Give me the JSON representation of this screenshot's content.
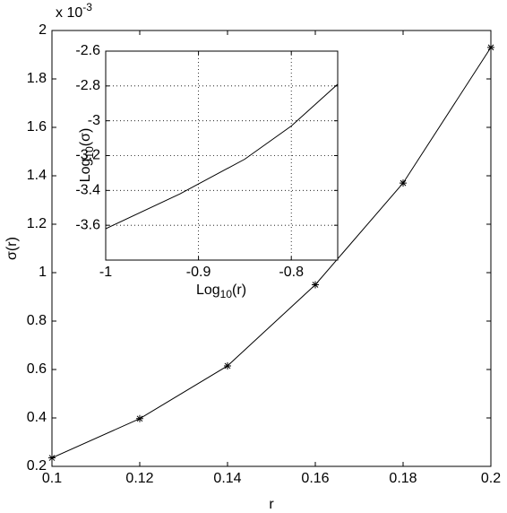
{
  "chart_data": [
    {
      "type": "line",
      "xlabel": "r",
      "ylabel": "σ(r)",
      "y_multiplier": {
        "base": "x 10",
        "exponent": "-3"
      },
      "x": [
        0.1,
        0.12,
        0.14,
        0.16,
        0.18,
        0.2
      ],
      "series": [
        {
          "color": "#000000",
          "marker": "*",
          "values": [
            0.235,
            0.397,
            0.615,
            0.95,
            1.37,
            1.93
          ]
        }
      ],
      "xlim": [
        0.1,
        0.2
      ],
      "xticks": [
        0.1,
        0.12,
        0.14,
        0.16,
        0.18,
        0.2
      ],
      "ylim": [
        0.2,
        2
      ],
      "yticks": [
        0.2,
        0.4,
        0.6,
        0.8,
        1,
        1.2,
        1.4,
        1.6,
        1.8,
        2
      ],
      "grid": false
    },
    {
      "type": "line",
      "xlabel": [
        "Log",
        "10",
        "(r)"
      ],
      "ylabel": [
        "Log",
        "10",
        "(σ)"
      ],
      "x": [
        -1,
        -0.92,
        -0.85,
        -0.8,
        -0.75
      ],
      "series": [
        {
          "color": "#000000",
          "values": [
            -3.62,
            -3.42,
            -3.22,
            -3.03,
            -2.79
          ]
        }
      ],
      "xlim": [
        -1,
        -0.75
      ],
      "xticks": [
        -1,
        -0.9,
        -0.8
      ],
      "ylim": [
        -3.8,
        -2.6
      ],
      "yticks": [
        -3.6,
        -3.4,
        -3.2,
        -3,
        -2.8,
        -2.6
      ],
      "grid": true
    }
  ]
}
